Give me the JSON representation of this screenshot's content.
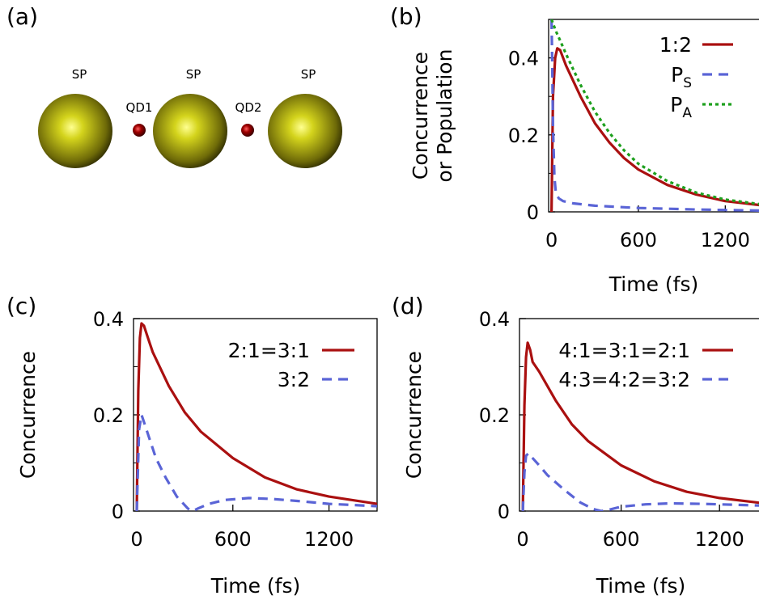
{
  "panel_a": {
    "label": "(a)",
    "sp_label": "SP",
    "qd1_label": "QD1",
    "qd2_label": "QD2",
    "sphere_color": "#d4d41c",
    "qd_color": "#a00000"
  },
  "chart_data": [
    {
      "panel": "(b)",
      "type": "line",
      "xlabel": "Time (fs)",
      "ylabel_line1": "Concurrence",
      "ylabel_line2": "or Population",
      "xlim": [
        -20,
        1500
      ],
      "ylim": [
        0,
        0.5
      ],
      "xticks": [
        0,
        600,
        1200
      ],
      "yticks": [
        0,
        0.2,
        0.4
      ],
      "legend_position": "top-right",
      "series": [
        {
          "name": "1:2",
          "sub": "",
          "color": "#aa1010",
          "style": "solid",
          "x": [
            0,
            10,
            25,
            40,
            60,
            100,
            200,
            300,
            400,
            500,
            600,
            800,
            1000,
            1200,
            1500
          ],
          "y": [
            0,
            0.3,
            0.4,
            0.425,
            0.42,
            0.38,
            0.3,
            0.23,
            0.18,
            0.14,
            0.11,
            0.07,
            0.045,
            0.028,
            0.015
          ]
        },
        {
          "name": "P",
          "sub": "S",
          "color": "#5a64d6",
          "style": "dashed",
          "x": [
            0,
            5,
            10,
            20,
            30,
            50,
            80,
            150,
            300,
            600,
            1000,
            1500
          ],
          "y": [
            0.5,
            0.38,
            0.22,
            0.09,
            0.05,
            0.035,
            0.028,
            0.022,
            0.016,
            0.01,
            0.006,
            0.003
          ]
        },
        {
          "name": "P",
          "sub": "A",
          "color": "#1ea01e",
          "style": "dotted",
          "x": [
            0,
            30,
            60,
            100,
            200,
            300,
            400,
            500,
            600,
            800,
            1000,
            1200,
            1500
          ],
          "y": [
            0.5,
            0.47,
            0.445,
            0.41,
            0.33,
            0.26,
            0.205,
            0.16,
            0.125,
            0.08,
            0.05,
            0.032,
            0.017
          ]
        }
      ]
    },
    {
      "panel": "(c)",
      "type": "line",
      "xlabel": "Time (fs)",
      "ylabel": "Concurrence",
      "xlim": [
        -20,
        1500
      ],
      "ylim": [
        0,
        0.4
      ],
      "xticks": [
        0,
        600,
        1200
      ],
      "yticks": [
        0,
        0.2,
        0.4
      ],
      "legend_position": "top-right",
      "series": [
        {
          "name": "2:1=3:1",
          "color": "#aa1010",
          "style": "solid",
          "x": [
            0,
            10,
            20,
            30,
            45,
            70,
            100,
            200,
            300,
            400,
            600,
            800,
            1000,
            1200,
            1500
          ],
          "y": [
            0,
            0.25,
            0.36,
            0.39,
            0.385,
            0.36,
            0.33,
            0.26,
            0.205,
            0.165,
            0.11,
            0.07,
            0.045,
            0.03,
            0.015
          ]
        },
        {
          "name": "3:2",
          "color": "#5a64d6",
          "style": "dashed",
          "x": [
            0,
            15,
            30,
            50,
            80,
            120,
            180,
            250,
            320,
            350,
            380,
            450,
            550,
            700,
            850,
            1000,
            1200,
            1500
          ],
          "y": [
            0,
            0.17,
            0.2,
            0.18,
            0.15,
            0.11,
            0.07,
            0.03,
            0.005,
            0,
            0.005,
            0.015,
            0.023,
            0.027,
            0.025,
            0.021,
            0.015,
            0.01
          ]
        }
      ]
    },
    {
      "panel": "(d)",
      "type": "line",
      "xlabel": "Time (fs)",
      "ylabel": "Concurrence",
      "xlim": [
        -20,
        1500
      ],
      "ylim": [
        0,
        0.4
      ],
      "xticks": [
        0,
        600,
        1200
      ],
      "yticks": [
        0,
        0.2,
        0.4
      ],
      "legend_position": "top-right",
      "series": [
        {
          "name": "4:1=3:1=2:1",
          "color": "#aa1010",
          "style": "solid",
          "x": [
            0,
            10,
            20,
            30,
            45,
            60,
            100,
            200,
            300,
            400,
            600,
            800,
            1000,
            1200,
            1500
          ],
          "y": [
            0,
            0.22,
            0.32,
            0.35,
            0.335,
            0.31,
            0.29,
            0.23,
            0.18,
            0.145,
            0.095,
            0.062,
            0.04,
            0.027,
            0.015
          ]
        },
        {
          "name": "4:3=4:2=3:2",
          "color": "#5a64d6",
          "style": "dashed",
          "x": [
            0,
            10,
            20,
            35,
            60,
            100,
            150,
            250,
            350,
            430,
            480,
            530,
            600,
            750,
            900,
            1100,
            1300,
            1500
          ],
          "y": [
            0,
            0.08,
            0.115,
            0.12,
            0.11,
            0.095,
            0.075,
            0.045,
            0.018,
            0.004,
            0,
            0.003,
            0.009,
            0.014,
            0.016,
            0.015,
            0.013,
            0.011
          ]
        }
      ]
    }
  ]
}
